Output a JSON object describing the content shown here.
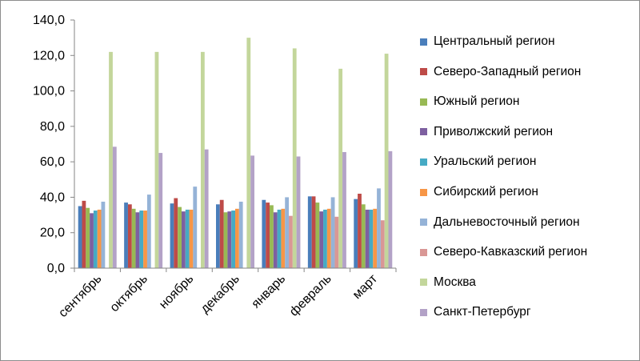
{
  "chart_data": {
    "type": "bar",
    "categories": [
      "сентябрь",
      "октябрь",
      "ноябрь",
      "декабрь",
      "январь",
      "февраль",
      "март"
    ],
    "ylim": [
      0,
      140
    ],
    "yticks": [
      "0,0",
      "20,0",
      "40,0",
      "60,0",
      "80,0",
      "100,0",
      "120,0",
      "140,0"
    ],
    "ytick_values": [
      0,
      20,
      40,
      60,
      80,
      100,
      120,
      140
    ],
    "grid": false,
    "legend_position": "right",
    "series": [
      {
        "name": "Центральный регион",
        "color": "#4a7ebb",
        "values": [
          35.0,
          37.0,
          36.5,
          36.0,
          38.5,
          40.5,
          39.0
        ]
      },
      {
        "name": "Северо-Западный регион",
        "color": "#be4b48",
        "values": [
          38.0,
          36.0,
          39.5,
          38.5,
          37.0,
          40.5,
          42.0
        ]
      },
      {
        "name": "Южный регион",
        "color": "#98b954",
        "values": [
          34.0,
          33.5,
          34.5,
          31.5,
          35.5,
          37.0,
          36.0
        ]
      },
      {
        "name": "Приволжский регион",
        "color": "#7d60a0",
        "values": [
          31.0,
          31.5,
          32.0,
          32.0,
          31.5,
          32.0,
          33.0
        ]
      },
      {
        "name": "Уральский регион",
        "color": "#46aac4",
        "values": [
          32.5,
          32.5,
          33.0,
          32.5,
          33.0,
          33.0,
          33.0
        ]
      },
      {
        "name": "Сибирский регион",
        "color": "#f79646",
        "values": [
          33.0,
          32.5,
          33.0,
          33.5,
          33.5,
          33.5,
          33.5
        ]
      },
      {
        "name": "Дальневосточный регион",
        "color": "#95b3d7",
        "values": [
          37.5,
          41.5,
          46.0,
          37.5,
          40.0,
          40.0,
          45.0
        ]
      },
      {
        "name": "Северо-Кавказский регион",
        "color": "#d99795",
        "values": [
          0,
          0,
          0,
          0,
          29.5,
          29.0,
          27.0
        ]
      },
      {
        "name": "Москва",
        "color": "#c3d69b",
        "values": [
          122.0,
          122.0,
          122.0,
          130.0,
          124.0,
          112.5,
          121.0
        ]
      },
      {
        "name": "Санкт-Петербург",
        "color": "#b3a2c7",
        "values": [
          68.5,
          65.0,
          67.0,
          63.5,
          63.0,
          65.5,
          66.0
        ]
      }
    ]
  }
}
